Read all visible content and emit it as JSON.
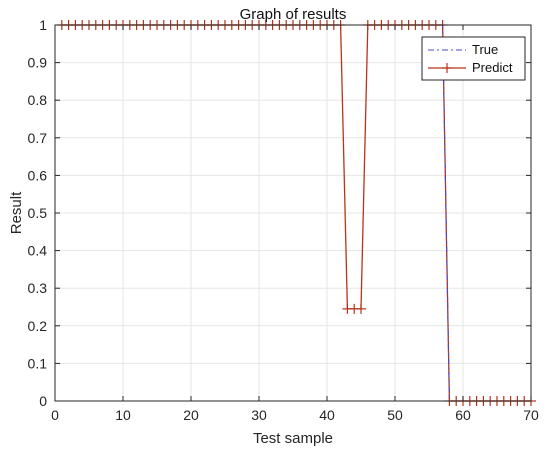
{
  "chart_data": {
    "type": "line",
    "title": "Graph of results",
    "xlabel": "Test sample",
    "ylabel": "Result",
    "xlim": [
      0,
      70
    ],
    "ylim": [
      0,
      1
    ],
    "xticks": [
      0,
      10,
      20,
      30,
      40,
      50,
      60,
      70
    ],
    "yticks": [
      0,
      0.1,
      0.2,
      0.3,
      0.4,
      0.5,
      0.6,
      0.7,
      0.8,
      0.9,
      1
    ],
    "grid": true,
    "legend_position": "top-right",
    "series": [
      {
        "name": "True",
        "style": "dash-dot",
        "marker": "none",
        "color": "#4a4ad0",
        "x": [
          1,
          2,
          3,
          4,
          5,
          6,
          7,
          8,
          9,
          10,
          11,
          12,
          13,
          14,
          15,
          16,
          17,
          18,
          19,
          20,
          21,
          22,
          23,
          24,
          25,
          26,
          27,
          28,
          29,
          30,
          31,
          32,
          33,
          34,
          35,
          36,
          37,
          38,
          39,
          40,
          41,
          42,
          43,
          44,
          45,
          46,
          47,
          48,
          49,
          50,
          51,
          52,
          53,
          54,
          55,
          56,
          57,
          58,
          59,
          60,
          61,
          62,
          63,
          64,
          65,
          66,
          67,
          68,
          69,
          70
        ],
        "y": [
          1,
          1,
          1,
          1,
          1,
          1,
          1,
          1,
          1,
          1,
          1,
          1,
          1,
          1,
          1,
          1,
          1,
          1,
          1,
          1,
          1,
          1,
          1,
          1,
          1,
          1,
          1,
          1,
          1,
          1,
          1,
          1,
          1,
          1,
          1,
          1,
          1,
          1,
          1,
          1,
          1,
          1,
          1,
          1,
          1,
          1,
          1,
          1,
          1,
          1,
          1,
          1,
          1,
          1,
          1,
          1,
          1,
          0,
          0,
          0,
          0,
          0,
          0,
          0,
          0,
          0,
          0,
          0,
          0,
          0
        ]
      },
      {
        "name": "Predict",
        "style": "solid",
        "marker": "plus",
        "color": "#b5341a",
        "x": [
          1,
          2,
          3,
          4,
          5,
          6,
          7,
          8,
          9,
          10,
          11,
          12,
          13,
          14,
          15,
          16,
          17,
          18,
          19,
          20,
          21,
          22,
          23,
          24,
          25,
          26,
          27,
          28,
          29,
          30,
          31,
          32,
          33,
          34,
          35,
          36,
          37,
          38,
          39,
          40,
          41,
          42,
          43,
          44,
          45,
          46,
          47,
          48,
          49,
          50,
          51,
          52,
          53,
          54,
          55,
          56,
          57,
          58,
          59,
          60,
          61,
          62,
          63,
          64,
          65,
          66,
          67,
          68,
          69,
          70
        ],
        "y": [
          1,
          1,
          1,
          1,
          1,
          1,
          1,
          1,
          1,
          1,
          1,
          1,
          1,
          1,
          1,
          1,
          1,
          1,
          1,
          1,
          1,
          1,
          1,
          1,
          1,
          1,
          1,
          1,
          1,
          1,
          1,
          1,
          1,
          1,
          1,
          1,
          1,
          1,
          1,
          1,
          1,
          1,
          0.245,
          0.245,
          0.245,
          1,
          1,
          1,
          1,
          1,
          1,
          1,
          1,
          1,
          1,
          1,
          1,
          0,
          0,
          0,
          0,
          0,
          0,
          0,
          0,
          0,
          0,
          0,
          0,
          0
        ]
      }
    ]
  }
}
